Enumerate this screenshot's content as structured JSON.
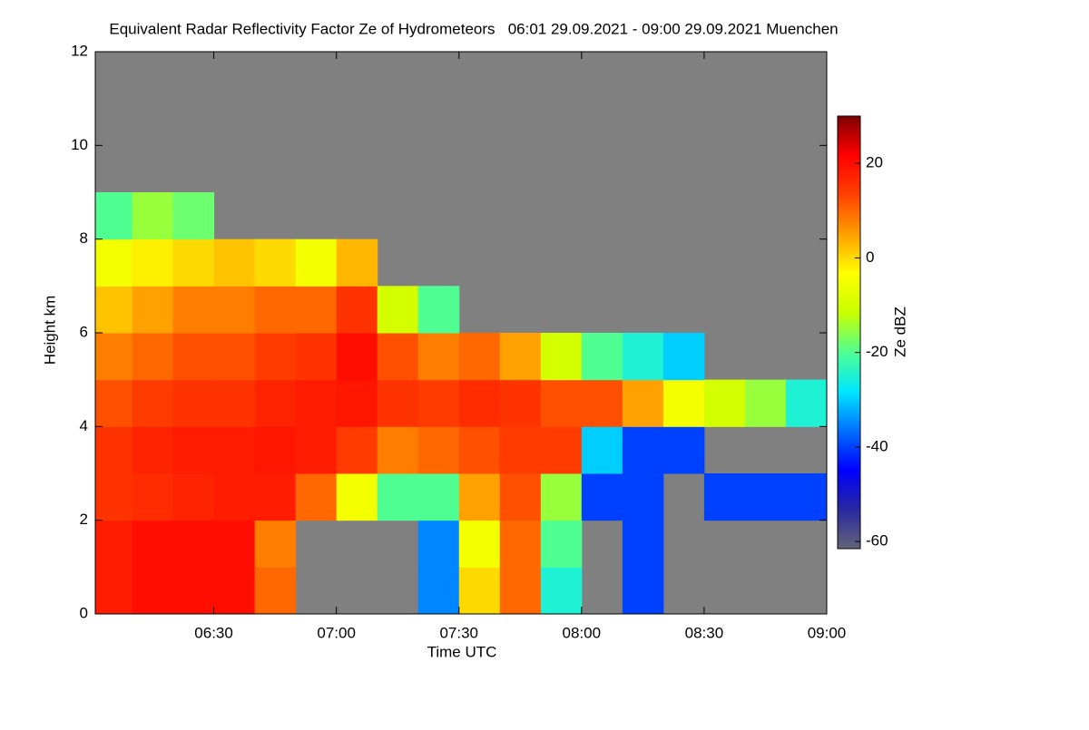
{
  "chart_data": {
    "type": "heatmap",
    "title": "Equivalent Radar Reflectivity Factor Ze of Hydrometeors   06:01 29.09.2021 - 09:00 29.09.2021 Muenchen",
    "xlabel": "Time UTC",
    "ylabel": "Height km",
    "zlabel": "Ze dBZ",
    "xlim": [
      361,
      540
    ],
    "xticks": [
      {
        "value": 390,
        "label": "06:30"
      },
      {
        "value": 420,
        "label": "07:00"
      },
      {
        "value": 450,
        "label": "07:30"
      },
      {
        "value": 480,
        "label": "08:00"
      },
      {
        "value": 510,
        "label": "08:30"
      },
      {
        "value": 540,
        "label": "09:00"
      }
    ],
    "ylim": [
      0,
      12
    ],
    "yticks": [
      0,
      2,
      4,
      6,
      8,
      10,
      12
    ],
    "zlim": [
      -61.5,
      30
    ],
    "zticks": [
      -60,
      -40,
      -20,
      0,
      20
    ],
    "background": "#808080",
    "colormap": [
      "#646478",
      "#2828a0",
      "#0000ff",
      "#0070ff",
      "#00e8ff",
      "#50ff90",
      "#c8ff00",
      "#ffff00",
      "#ffa000",
      "#ff4000",
      "#ff0000",
      "#800000"
    ],
    "x_edges": [
      361,
      370,
      380,
      390,
      400,
      410,
      420,
      430,
      440,
      450,
      460,
      470,
      480,
      490,
      500,
      510,
      520,
      530,
      540
    ],
    "y_edges": [
      0,
      1,
      2,
      3,
      4,
      5,
      6,
      7,
      8,
      9
    ],
    "z": [
      [
        18,
        20,
        20,
        20,
        10,
        null,
        null,
        null,
        -35,
        0,
        10,
        -25,
        null,
        -40,
        null,
        null,
        null,
        null
      ],
      [
        18,
        20,
        20,
        20,
        8,
        null,
        null,
        null,
        -35,
        -5,
        10,
        -20,
        null,
        -40,
        null,
        null,
        null,
        null
      ],
      [
        15,
        16,
        17,
        18,
        18,
        10,
        -5,
        -20,
        -20,
        5,
        12,
        -15,
        -40,
        -40,
        null,
        -40,
        -40,
        -40
      ],
      [
        15,
        17,
        18,
        18,
        19,
        18,
        14,
        8,
        10,
        12,
        14,
        14,
        -30,
        -40,
        -40,
        null,
        null,
        null
      ],
      [
        12,
        14,
        15,
        15,
        17,
        18,
        19,
        15,
        14,
        16,
        15,
        12,
        12,
        5,
        -5,
        -10,
        -15,
        -25
      ],
      [
        8,
        10,
        12,
        12,
        14,
        15,
        20,
        12,
        8,
        10,
        5,
        -10,
        -20,
        -25,
        -30,
        null,
        null,
        null
      ],
      [
        2,
        5,
        8,
        8,
        10,
        10,
        15,
        -10,
        -20,
        null,
        null,
        null,
        null,
        null,
        null,
        null,
        null,
        null
      ],
      [
        -5,
        -2,
        0,
        2,
        0,
        -5,
        3,
        null,
        null,
        null,
        null,
        null,
        null,
        null,
        null,
        null,
        null,
        null
      ],
      [
        -20,
        -15,
        -18,
        null,
        null,
        null,
        null,
        null,
        null,
        null,
        null,
        null,
        null,
        null,
        null,
        null,
        null,
        null
      ]
    ]
  }
}
